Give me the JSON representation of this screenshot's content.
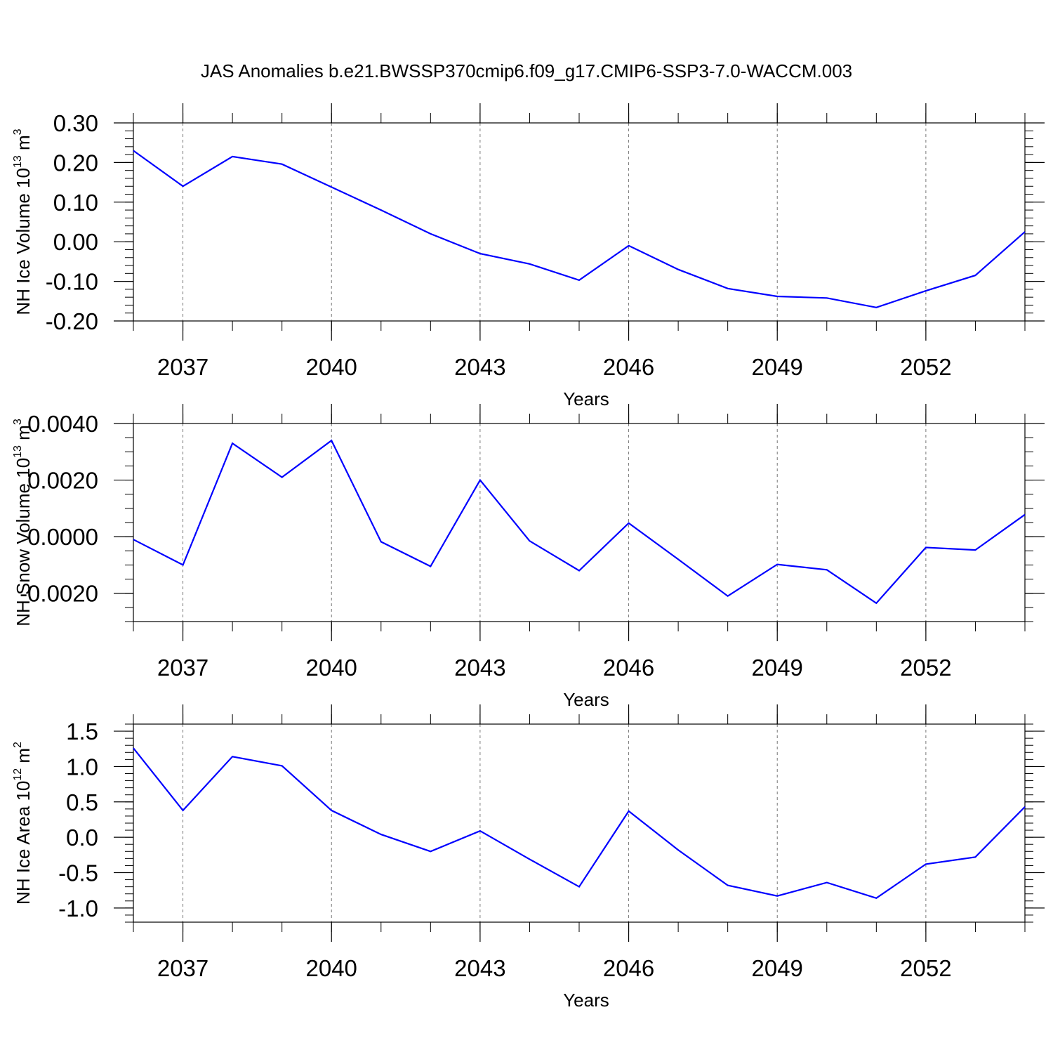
{
  "title": "JAS Anomalies b.e21.BWSSP370cmip6.f09_g17.CMIP6-SSP3-7.0-WACCM.003",
  "line_color": "#0000ff",
  "chart_data": [
    {
      "type": "line",
      "title": "",
      "xlabel": "Years",
      "ylabel": "NH Ice Volume 10",
      "ylabel_exponent": "13",
      "ylabel_unit": "m",
      "ylabel_unit_exponent": "3",
      "xlim": [
        2036,
        2054
      ],
      "ylim": [
        -0.2,
        0.3
      ],
      "x_ticks": [
        2037,
        2040,
        2043,
        2046,
        2049,
        2052
      ],
      "x_tick_labels": [
        "2037",
        "2040",
        "2043",
        "2046",
        "2049",
        "2052"
      ],
      "y_ticks": [
        -0.2,
        -0.1,
        0.0,
        0.1,
        0.2,
        0.3
      ],
      "y_tick_labels": [
        "-0.20",
        "-0.10",
        "0.00",
        "0.10",
        "0.20",
        "0.30"
      ],
      "y_minor_step": 0.02,
      "series": [
        {
          "name": "NH Ice Volume",
          "x": [
            2036,
            2037,
            2038,
            2039,
            2040,
            2041,
            2042,
            2043,
            2044,
            2045,
            2046,
            2047,
            2048,
            2049,
            2050,
            2051,
            2052,
            2053,
            2054
          ],
          "values": [
            0.23,
            0.14,
            0.215,
            0.196,
            0.138,
            0.08,
            0.02,
            -0.03,
            -0.056,
            -0.097,
            -0.01,
            -0.07,
            -0.118,
            -0.138,
            -0.142,
            -0.166,
            -0.124,
            -0.085,
            0.025
          ]
        }
      ]
    },
    {
      "type": "line",
      "title": "",
      "xlabel": "Years",
      "ylabel": "NH Snow Volume 10",
      "ylabel_exponent": "13",
      "ylabel_unit": "m",
      "ylabel_unit_exponent": "3",
      "xlim": [
        2036,
        2054
      ],
      "ylim": [
        -0.003,
        0.004
      ],
      "x_ticks": [
        2037,
        2040,
        2043,
        2046,
        2049,
        2052
      ],
      "x_tick_labels": [
        "2037",
        "2040",
        "2043",
        "2046",
        "2049",
        "2052"
      ],
      "y_ticks": [
        -0.002,
        0.0,
        0.002,
        0.004
      ],
      "y_tick_labels": [
        "-0.0020",
        "0.0000",
        "0.0020",
        "0.0040"
      ],
      "y_minor_step": 0.0005,
      "series": [
        {
          "name": "NH Snow Volume",
          "x": [
            2036,
            2037,
            2038,
            2039,
            2040,
            2041,
            2042,
            2043,
            2044,
            2045,
            2046,
            2047,
            2048,
            2049,
            2050,
            2051,
            2052,
            2053,
            2054
          ],
          "values": [
            -0.0001,
            -0.001,
            0.0033,
            0.0021,
            0.0034,
            -0.00018,
            -0.00105,
            0.002,
            -0.00015,
            -0.0012,
            0.00048,
            -0.0008,
            -0.0021,
            -0.00098,
            -0.00117,
            -0.00235,
            -0.00038,
            -0.00047,
            0.00078
          ]
        }
      ]
    },
    {
      "type": "line",
      "title": "",
      "xlabel": "Years",
      "ylabel": "NH Ice Area 10",
      "ylabel_exponent": "12",
      "ylabel_unit": "m",
      "ylabel_unit_exponent": "2",
      "xlim": [
        2036,
        2054
      ],
      "ylim": [
        -1.2,
        1.6
      ],
      "x_ticks": [
        2037,
        2040,
        2043,
        2046,
        2049,
        2052
      ],
      "x_tick_labels": [
        "2037",
        "2040",
        "2043",
        "2046",
        "2049",
        "2052"
      ],
      "y_ticks": [
        -1.0,
        -0.5,
        0.0,
        0.5,
        1.0,
        1.5
      ],
      "y_tick_labels": [
        "-1.0",
        "-0.5",
        "0.0",
        "0.5",
        "1.0",
        "1.5"
      ],
      "y_minor_step": 0.1,
      "series": [
        {
          "name": "NH Ice Area",
          "x": [
            2036,
            2037,
            2038,
            2039,
            2040,
            2041,
            2042,
            2043,
            2044,
            2045,
            2046,
            2047,
            2048,
            2049,
            2050,
            2051,
            2052,
            2053,
            2054
          ],
          "values": [
            1.26,
            0.38,
            1.14,
            1.01,
            0.38,
            0.04,
            -0.2,
            0.09,
            -0.31,
            -0.7,
            0.37,
            -0.18,
            -0.68,
            -0.83,
            -0.64,
            -0.86,
            -0.38,
            -0.28,
            0.43
          ]
        }
      ]
    }
  ]
}
